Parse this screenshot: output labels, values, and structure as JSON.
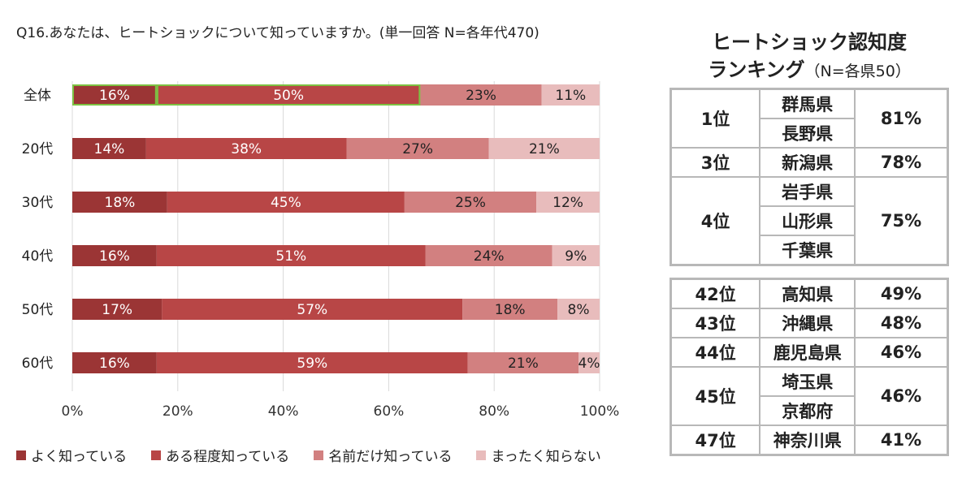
{
  "question": "Q16.あなたは、ヒートショックについて知っていますか。(単一回答 N=各年代470)",
  "chart_data": {
    "type": "bar",
    "orientation": "horizontal",
    "stacked": true,
    "categories": [
      "全体",
      "20代",
      "30代",
      "40代",
      "50代",
      "60代"
    ],
    "series": [
      {
        "name": "よく知っている",
        "color": "#9b3535",
        "values": [
          16,
          14,
          18,
          16,
          17,
          16
        ]
      },
      {
        "name": "ある程度知っている",
        "color": "#b84646",
        "values": [
          50,
          38,
          45,
          51,
          57,
          59
        ]
      },
      {
        "name": "名前だけ知っている",
        "color": "#d28080",
        "values": [
          23,
          27,
          25,
          24,
          18,
          21
        ]
      },
      {
        "name": "まったく知らない",
        "color": "#e8bcbc",
        "values": [
          11,
          21,
          12,
          9,
          8,
          4
        ]
      }
    ],
    "data_labels": [
      [
        "16%",
        "50%",
        "23%",
        "11%"
      ],
      [
        "14%",
        "38%",
        "27%",
        "21%"
      ],
      [
        "18%",
        "45%",
        "25%",
        "12%"
      ],
      [
        "16%",
        "51%",
        "24%",
        "9%"
      ],
      [
        "17%",
        "57%",
        "18%",
        "8%"
      ],
      [
        "16%",
        "59%",
        "21%",
        "4%"
      ]
    ],
    "xlim": [
      0,
      100
    ],
    "xticks": [
      "0%",
      "20%",
      "40%",
      "60%",
      "80%",
      "100%"
    ],
    "highlight": {
      "row": 0,
      "segments": [
        0,
        1
      ],
      "color": "#7cc142"
    },
    "legend_position": "bottom"
  },
  "ranking": {
    "title": "ヒートショック認知度",
    "subtitle_main": "ランキング",
    "subtitle_note": "（N=各県50）",
    "top": [
      {
        "rank": "1位",
        "prefectures": [
          "群馬県",
          "長野県"
        ],
        "percent": "81%"
      },
      {
        "rank": "3位",
        "prefectures": [
          "新潟県"
        ],
        "percent": "78%"
      },
      {
        "rank": "4位",
        "prefectures": [
          "岩手県",
          "山形県",
          "千葉県"
        ],
        "percent": "75%"
      }
    ],
    "bottom": [
      {
        "rank": "42位",
        "prefectures": [
          "高知県"
        ],
        "percent": "49%"
      },
      {
        "rank": "43位",
        "prefectures": [
          "沖縄県"
        ],
        "percent": "48%"
      },
      {
        "rank": "44位",
        "prefectures": [
          "鹿児島県"
        ],
        "percent": "46%"
      },
      {
        "rank": "45位",
        "prefectures": [
          "埼玉県",
          "京都府"
        ],
        "percent": "46%"
      },
      {
        "rank": "47位",
        "prefectures": [
          "神奈川県"
        ],
        "percent": "41%"
      }
    ]
  }
}
